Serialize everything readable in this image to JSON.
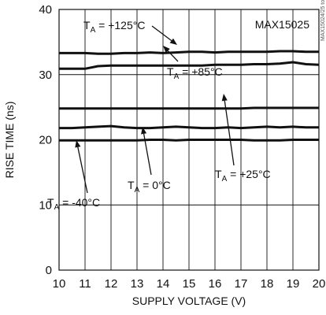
{
  "chart_data": {
    "type": "line",
    "xlabel": "SUPPLY VOLTAGE (V)",
    "ylabel": "RISE TIME (ns)",
    "xlim": [
      10,
      20
    ],
    "ylim": [
      0,
      40
    ],
    "grid": true,
    "x_ticks": [
      10,
      11,
      12,
      13,
      14,
      15,
      16,
      17,
      18,
      19,
      20
    ],
    "y_ticks": [
      0,
      10,
      20,
      30,
      40
    ],
    "x": [
      10,
      10.5,
      11,
      11.5,
      12,
      12.5,
      13,
      13.5,
      14,
      14.5,
      15,
      15.5,
      16,
      16.5,
      17,
      17.5,
      18,
      18.5,
      19,
      19.5,
      20
    ],
    "series": [
      {
        "values": [
          33.3,
          33.3,
          33.3,
          33.2,
          33.2,
          33.3,
          33.3,
          33.4,
          33.3,
          33.4,
          33.5,
          33.5,
          33.4,
          33.5,
          33.5,
          33.5,
          33.5,
          33.6,
          33.6,
          33.5,
          33.5
        ]
      },
      {
        "values": [
          30.9,
          30.9,
          30.9,
          31.3,
          31.4,
          31.4,
          31.4,
          31.4,
          31.4,
          31.4,
          31.4,
          31.4,
          31.5,
          31.5,
          31.5,
          31.6,
          31.6,
          31.7,
          31.9,
          31.6,
          31.5
        ]
      },
      {
        "values": [
          24.8,
          24.8,
          24.8,
          24.8,
          24.8,
          24.8,
          24.8,
          24.8,
          24.8,
          24.8,
          24.8,
          24.8,
          24.8,
          24.8,
          24.8,
          24.9,
          24.9,
          24.9,
          24.9,
          24.9,
          24.9
        ]
      },
      {
        "values": [
          21.8,
          21.8,
          21.9,
          22.0,
          22.1,
          21.9,
          21.8,
          21.8,
          21.9,
          22.0,
          21.9,
          21.8,
          21.8,
          21.9,
          21.8,
          21.9,
          22.0,
          21.9,
          22.0,
          21.9,
          21.9
        ]
      },
      {
        "values": [
          19.9,
          19.9,
          19.9,
          19.9,
          19.9,
          19.9,
          19.9,
          20.0,
          20.0,
          19.9,
          20.0,
          20.0,
          20.0,
          20.0,
          20.0,
          19.9,
          19.9,
          19.9,
          20.0,
          20.0,
          20.0
        ]
      }
    ],
    "annotations": [
      {
        "label_main": "T",
        "label_sub": "A",
        "label_rest": " = +125°C"
      },
      {
        "label_main": "T",
        "label_sub": "A",
        "label_rest": " = +85°C"
      },
      {
        "label_main": "T",
        "label_sub": "A",
        "label_rest": " = +25°C"
      },
      {
        "label_main": "T",
        "label_sub": "A",
        "label_rest": " = 0°C"
      },
      {
        "label_main": "T",
        "label_sub": "A",
        "label_rest": " = -40°C"
      }
    ],
    "part_number": "MAX15025",
    "figure_id": "MAX15024/25 toc01",
    "line_color": "#111111",
    "grid_color": "#111111"
  }
}
